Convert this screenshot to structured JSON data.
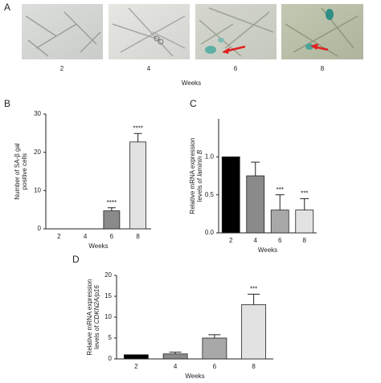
{
  "panel_a": {
    "label": "A",
    "timepoints": [
      "2",
      "4",
      "6",
      "8"
    ],
    "xlabel": "Weeks"
  },
  "chart_data": [
    {
      "type": "bar",
      "panel": "B",
      "categories": [
        "2",
        "4",
        "6",
        "8"
      ],
      "values": [
        0,
        0,
        4.7,
        22.7
      ],
      "errors": [
        0,
        0,
        0.8,
        2.2
      ],
      "significance": [
        null,
        null,
        "****",
        "****"
      ],
      "colors": [
        "#000000",
        "#8a8a8a",
        "#8a8a8a",
        "#e2e2e2"
      ],
      "ylim": [
        0,
        30
      ],
      "yticks": [
        0,
        10,
        20,
        30
      ],
      "xlabel": "Weeks",
      "ylabel": [
        [
          {
            "text": "Number of SA-β gal"
          }
        ],
        [
          {
            "text": "positive cells"
          }
        ]
      ]
    },
    {
      "type": "bar",
      "panel": "C",
      "categories": [
        "2",
        "4",
        "6",
        "8"
      ],
      "values": [
        1.0,
        0.75,
        0.3,
        0.3
      ],
      "errors": [
        0,
        0.18,
        0.2,
        0.15
      ],
      "significance": [
        null,
        null,
        "***",
        "***"
      ],
      "colors": [
        "#000000",
        "#8a8a8a",
        "#a8a8a8",
        "#e2e2e2"
      ],
      "ylim": [
        0,
        1.5
      ],
      "yticks": [
        {
          "value": 0,
          "label": "0.0"
        },
        {
          "value": 0.5,
          "label": "0.5"
        },
        {
          "value": 1,
          "label": "1.0"
        }
      ],
      "xlabel": "Weeks",
      "ylabel": [
        [
          {
            "text": "Relative mRNA expression"
          }
        ],
        [
          {
            "text": "levels of "
          },
          {
            "text": "laminin B",
            "italic": true
          }
        ]
      ]
    },
    {
      "type": "bar",
      "panel": "D",
      "categories": [
        "2",
        "4",
        "6",
        "8"
      ],
      "values": [
        1.0,
        1.2,
        5.0,
        13.0
      ],
      "errors": [
        0,
        0.4,
        0.8,
        2.5
      ],
      "significance": [
        null,
        null,
        null,
        "***"
      ],
      "colors": [
        "#000000",
        "#8a8a8a",
        "#a8a8a8",
        "#e2e2e2"
      ],
      "ylim": [
        0,
        20
      ],
      "yticks": [
        0,
        5,
        10,
        15,
        20
      ],
      "xlabel": "Weeks",
      "ylabel": [
        [
          {
            "text": "Relative mRNA expression"
          }
        ],
        [
          {
            "text": "levels of "
          },
          {
            "text": "CDKN2A/p16",
            "italic": true
          }
        ]
      ]
    }
  ]
}
